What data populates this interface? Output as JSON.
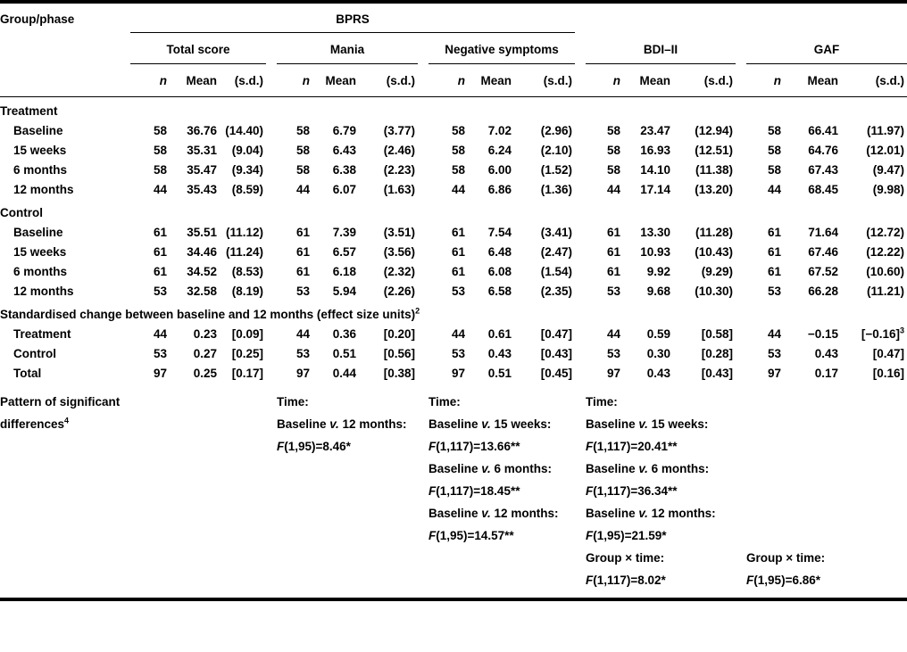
{
  "table": {
    "stub_header": "Group/phase",
    "top_group": "BPRS",
    "groups": [
      {
        "label": "Total score"
      },
      {
        "label": "Mania"
      },
      {
        "label": "Negative symptoms"
      },
      {
        "label": "BDI–II"
      },
      {
        "label": "GAF"
      }
    ],
    "subheaders": {
      "n": "n",
      "mean": "Mean",
      "sd": "(s.d.)"
    },
    "sections": [
      {
        "label": "Treatment",
        "rows": [
          {
            "label": "Baseline",
            "cells": [
              "58",
              "36.76",
              "(14.40)",
              "58",
              "6.79",
              "(3.77)",
              "58",
              "7.02",
              "(2.96)",
              "58",
              "23.47",
              "(12.94)",
              "58",
              "66.41",
              "(11.97)"
            ]
          },
          {
            "label": "15 weeks",
            "cells": [
              "58",
              "35.31",
              "(9.04)",
              "58",
              "6.43",
              "(2.46)",
              "58",
              "6.24",
              "(2.10)",
              "58",
              "16.93",
              "(12.51)",
              "58",
              "64.76",
              "(12.01)"
            ]
          },
          {
            "label": "6 months",
            "cells": [
              "58",
              "35.47",
              "(9.34)",
              "58",
              "6.38",
              "(2.23)",
              "58",
              "6.00",
              "(1.52)",
              "58",
              "14.10",
              "(11.38)",
              "58",
              "67.43",
              "(9.47)"
            ]
          },
          {
            "label": "12 months",
            "cells": [
              "44",
              "35.43",
              "(8.59)",
              "44",
              "6.07",
              "(1.63)",
              "44",
              "6.86",
              "(1.36)",
              "44",
              "17.14",
              "(13.20)",
              "44",
              "68.45",
              "(9.98)"
            ]
          }
        ]
      },
      {
        "label": "Control",
        "rows": [
          {
            "label": "Baseline",
            "cells": [
              "61",
              "35.51",
              "(11.12)",
              "61",
              "7.39",
              "(3.51)",
              "61",
              "7.54",
              "(3.41)",
              "61",
              "13.30",
              "(11.28)",
              "61",
              "71.64",
              "(12.72)"
            ]
          },
          {
            "label": "15 weeks",
            "cells": [
              "61",
              "34.46",
              "(11.24)",
              "61",
              "6.57",
              "(3.56)",
              "61",
              "6.48",
              "(2.47)",
              "61",
              "10.93",
              "(10.43)",
              "61",
              "67.46",
              "(12.22)"
            ]
          },
          {
            "label": "6 months",
            "cells": [
              "61",
              "34.52",
              "(8.53)",
              "61",
              "6.18",
              "(2.32)",
              "61",
              "6.08",
              "(1.54)",
              "61",
              "9.92",
              "(9.29)",
              "61",
              "67.52",
              "(10.60)"
            ]
          },
          {
            "label": "12 months",
            "cells": [
              "53",
              "32.58",
              "(8.19)",
              "53",
              "5.94",
              "(2.26)",
              "53",
              "6.58",
              "(2.35)",
              "53",
              "9.68",
              "(10.30)",
              "53",
              "66.28",
              "(11.21)"
            ]
          }
        ]
      },
      {
        "label": "Standardised change between baseline and 12 months (effect size units)²",
        "rows": [
          {
            "label": "Treatment",
            "cells": [
              "44",
              "0.23",
              "[0.09]",
              "44",
              "0.36",
              "[0.20]",
              "44",
              "0.61",
              "[0.47]",
              "44",
              "0.59",
              "[0.58]",
              "44",
              "−0.15",
              "[−0.16]³"
            ]
          },
          {
            "label": "Control",
            "cells": [
              "53",
              "0.27",
              "[0.25]",
              "53",
              "0.51",
              "[0.56]",
              "53",
              "0.43",
              "[0.43]",
              "53",
              "0.30",
              "[0.28]",
              "53",
              "0.43",
              "[0.47]"
            ]
          },
          {
            "label": "Total",
            "cells": [
              "97",
              "0.25",
              "[0.17]",
              "97",
              "0.44",
              "[0.38]",
              "97",
              "0.51",
              "[0.45]",
              "97",
              "0.43",
              "[0.43]",
              "97",
              "0.17",
              "[0.16]"
            ]
          }
        ]
      }
    ],
    "notes_row": {
      "label": "Pattern of significant differences⁴",
      "groups": [
        {
          "lines": []
        },
        {
          "lines": [
            "Time:",
            "Baseline v. 12 months:",
            "F(1,95)=8.46*"
          ]
        },
        {
          "lines": [
            "Time:",
            "Baseline v. 15 weeks:",
            "F(1,117)=13.66**",
            "Baseline v. 6 months:",
            "F(1,117)=18.45**",
            "Baseline v. 12 months:",
            "F(1,95)=14.57**"
          ]
        },
        {
          "lines": [
            "Time:",
            "Baseline v. 15 weeks:",
            "F(1,117)=20.41**",
            "Baseline v. 6 months:",
            "F(1,117)=36.34**",
            "Baseline v. 12 months:",
            "F(1,95)=21.59*",
            "Group × time:",
            "F(1,117)=8.02*"
          ]
        },
        {
          "lines": [
            "Group × time:",
            "F(1,95)=6.86*"
          ],
          "align": "bottom"
        }
      ]
    }
  }
}
